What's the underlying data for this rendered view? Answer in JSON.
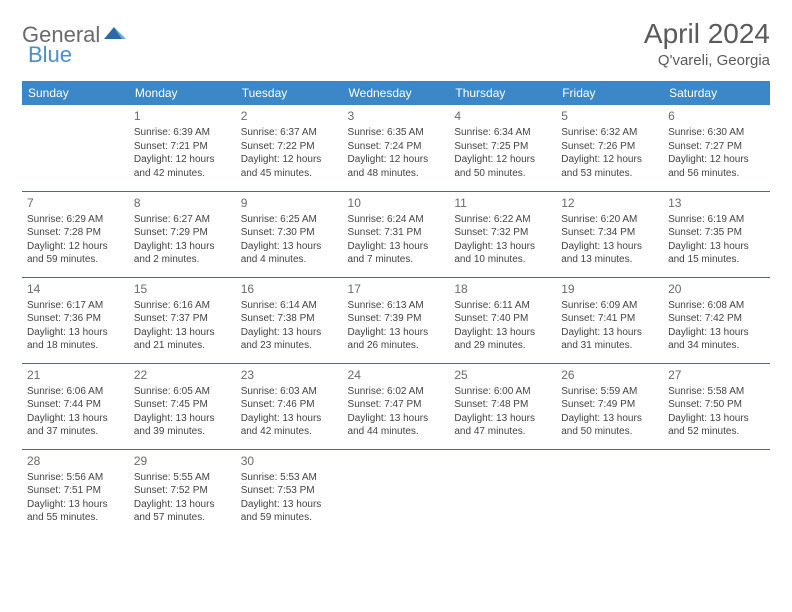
{
  "logo": {
    "text1": "General",
    "text2": "Blue"
  },
  "title": "April 2024",
  "location": "Q'vareli, Georgia",
  "header_bg": "#3b87c8",
  "border_color": "#3b6fa0",
  "weekdays": [
    "Sunday",
    "Monday",
    "Tuesday",
    "Wednesday",
    "Thursday",
    "Friday",
    "Saturday"
  ],
  "weeks": [
    [
      null,
      {
        "n": "1",
        "sr": "Sunrise: 6:39 AM",
        "ss": "Sunset: 7:21 PM",
        "d1": "Daylight: 12 hours",
        "d2": "and 42 minutes."
      },
      {
        "n": "2",
        "sr": "Sunrise: 6:37 AM",
        "ss": "Sunset: 7:22 PM",
        "d1": "Daylight: 12 hours",
        "d2": "and 45 minutes."
      },
      {
        "n": "3",
        "sr": "Sunrise: 6:35 AM",
        "ss": "Sunset: 7:24 PM",
        "d1": "Daylight: 12 hours",
        "d2": "and 48 minutes."
      },
      {
        "n": "4",
        "sr": "Sunrise: 6:34 AM",
        "ss": "Sunset: 7:25 PM",
        "d1": "Daylight: 12 hours",
        "d2": "and 50 minutes."
      },
      {
        "n": "5",
        "sr": "Sunrise: 6:32 AM",
        "ss": "Sunset: 7:26 PM",
        "d1": "Daylight: 12 hours",
        "d2": "and 53 minutes."
      },
      {
        "n": "6",
        "sr": "Sunrise: 6:30 AM",
        "ss": "Sunset: 7:27 PM",
        "d1": "Daylight: 12 hours",
        "d2": "and 56 minutes."
      }
    ],
    [
      {
        "n": "7",
        "sr": "Sunrise: 6:29 AM",
        "ss": "Sunset: 7:28 PM",
        "d1": "Daylight: 12 hours",
        "d2": "and 59 minutes."
      },
      {
        "n": "8",
        "sr": "Sunrise: 6:27 AM",
        "ss": "Sunset: 7:29 PM",
        "d1": "Daylight: 13 hours",
        "d2": "and 2 minutes."
      },
      {
        "n": "9",
        "sr": "Sunrise: 6:25 AM",
        "ss": "Sunset: 7:30 PM",
        "d1": "Daylight: 13 hours",
        "d2": "and 4 minutes."
      },
      {
        "n": "10",
        "sr": "Sunrise: 6:24 AM",
        "ss": "Sunset: 7:31 PM",
        "d1": "Daylight: 13 hours",
        "d2": "and 7 minutes."
      },
      {
        "n": "11",
        "sr": "Sunrise: 6:22 AM",
        "ss": "Sunset: 7:32 PM",
        "d1": "Daylight: 13 hours",
        "d2": "and 10 minutes."
      },
      {
        "n": "12",
        "sr": "Sunrise: 6:20 AM",
        "ss": "Sunset: 7:34 PM",
        "d1": "Daylight: 13 hours",
        "d2": "and 13 minutes."
      },
      {
        "n": "13",
        "sr": "Sunrise: 6:19 AM",
        "ss": "Sunset: 7:35 PM",
        "d1": "Daylight: 13 hours",
        "d2": "and 15 minutes."
      }
    ],
    [
      {
        "n": "14",
        "sr": "Sunrise: 6:17 AM",
        "ss": "Sunset: 7:36 PM",
        "d1": "Daylight: 13 hours",
        "d2": "and 18 minutes."
      },
      {
        "n": "15",
        "sr": "Sunrise: 6:16 AM",
        "ss": "Sunset: 7:37 PM",
        "d1": "Daylight: 13 hours",
        "d2": "and 21 minutes."
      },
      {
        "n": "16",
        "sr": "Sunrise: 6:14 AM",
        "ss": "Sunset: 7:38 PM",
        "d1": "Daylight: 13 hours",
        "d2": "and 23 minutes."
      },
      {
        "n": "17",
        "sr": "Sunrise: 6:13 AM",
        "ss": "Sunset: 7:39 PM",
        "d1": "Daylight: 13 hours",
        "d2": "and 26 minutes."
      },
      {
        "n": "18",
        "sr": "Sunrise: 6:11 AM",
        "ss": "Sunset: 7:40 PM",
        "d1": "Daylight: 13 hours",
        "d2": "and 29 minutes."
      },
      {
        "n": "19",
        "sr": "Sunrise: 6:09 AM",
        "ss": "Sunset: 7:41 PM",
        "d1": "Daylight: 13 hours",
        "d2": "and 31 minutes."
      },
      {
        "n": "20",
        "sr": "Sunrise: 6:08 AM",
        "ss": "Sunset: 7:42 PM",
        "d1": "Daylight: 13 hours",
        "d2": "and 34 minutes."
      }
    ],
    [
      {
        "n": "21",
        "sr": "Sunrise: 6:06 AM",
        "ss": "Sunset: 7:44 PM",
        "d1": "Daylight: 13 hours",
        "d2": "and 37 minutes."
      },
      {
        "n": "22",
        "sr": "Sunrise: 6:05 AM",
        "ss": "Sunset: 7:45 PM",
        "d1": "Daylight: 13 hours",
        "d2": "and 39 minutes."
      },
      {
        "n": "23",
        "sr": "Sunrise: 6:03 AM",
        "ss": "Sunset: 7:46 PM",
        "d1": "Daylight: 13 hours",
        "d2": "and 42 minutes."
      },
      {
        "n": "24",
        "sr": "Sunrise: 6:02 AM",
        "ss": "Sunset: 7:47 PM",
        "d1": "Daylight: 13 hours",
        "d2": "and 44 minutes."
      },
      {
        "n": "25",
        "sr": "Sunrise: 6:00 AM",
        "ss": "Sunset: 7:48 PM",
        "d1": "Daylight: 13 hours",
        "d2": "and 47 minutes."
      },
      {
        "n": "26",
        "sr": "Sunrise: 5:59 AM",
        "ss": "Sunset: 7:49 PM",
        "d1": "Daylight: 13 hours",
        "d2": "and 50 minutes."
      },
      {
        "n": "27",
        "sr": "Sunrise: 5:58 AM",
        "ss": "Sunset: 7:50 PM",
        "d1": "Daylight: 13 hours",
        "d2": "and 52 minutes."
      }
    ],
    [
      {
        "n": "28",
        "sr": "Sunrise: 5:56 AM",
        "ss": "Sunset: 7:51 PM",
        "d1": "Daylight: 13 hours",
        "d2": "and 55 minutes."
      },
      {
        "n": "29",
        "sr": "Sunrise: 5:55 AM",
        "ss": "Sunset: 7:52 PM",
        "d1": "Daylight: 13 hours",
        "d2": "and 57 minutes."
      },
      {
        "n": "30",
        "sr": "Sunrise: 5:53 AM",
        "ss": "Sunset: 7:53 PM",
        "d1": "Daylight: 13 hours",
        "d2": "and 59 minutes."
      },
      null,
      null,
      null,
      null
    ]
  ]
}
